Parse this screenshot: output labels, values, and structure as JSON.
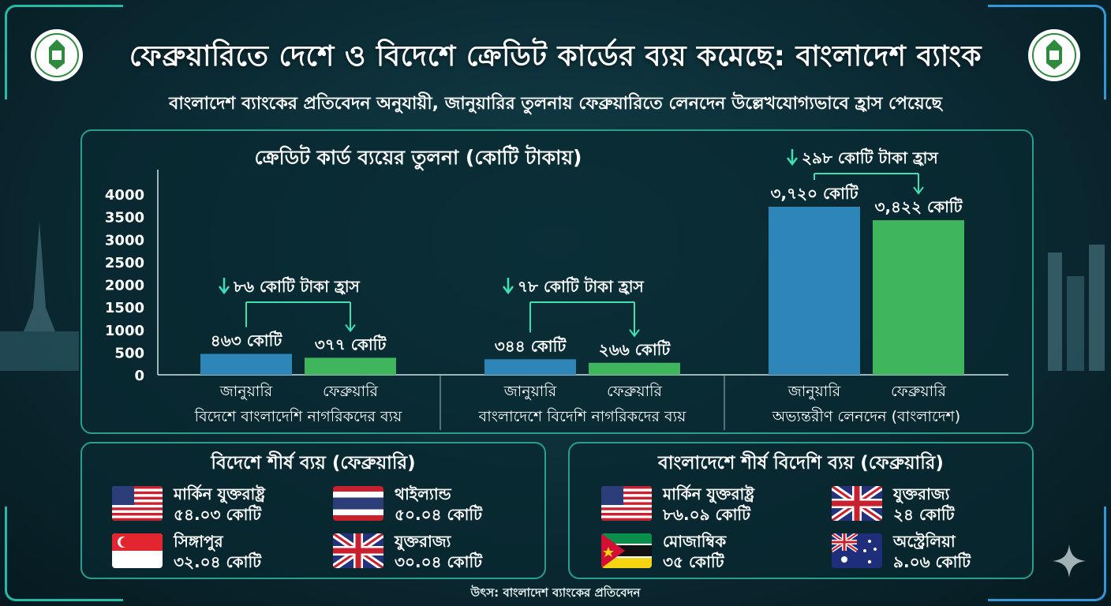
{
  "header": {
    "title": "ফেব্রুয়ারিতে দেশে ও বিদেশে ক্রেডিট কার্ডের ব্যয় কমেছে: বাংলাদেশ ব্যাংক",
    "subtitle": "বাংলাদেশ ব্যাংকের প্রতিবেদন অনুযায়ী, জানুয়ারির তুলনায় ফেব্রুয়ারিতে লেনদেন উল্লেখযোগ্যভাবে হ্রাস পেয়েছে"
  },
  "chart_data": {
    "type": "bar",
    "title": "ক্রেডিট কার্ড ব্যয়ের তুলনা (কোটি টাকায়)",
    "ylim": [
      0,
      4000
    ],
    "yticks": [
      0,
      500,
      1000,
      1500,
      2000,
      2500,
      3000,
      3500,
      4000
    ],
    "colors": {
      "january": "#2e86b8",
      "february": "#3fb55e"
    },
    "groups": [
      {
        "name": "বিদেশে বাংলাদেশি নাগরিকদের ব্যয়",
        "bars": [
          {
            "category": "জানুয়ারি",
            "value": 463,
            "label": "৪৬৩ কোটি"
          },
          {
            "category": "ফেব্রুয়ারি",
            "value": 377,
            "label": "৩৭৭ কোটি"
          }
        ],
        "change_label": "৮৬ কোটি টাকা হ্রাস"
      },
      {
        "name": "বাংলাদেশে বিদেশি নাগরিকদের ব্যয়",
        "bars": [
          {
            "category": "জানুয়ারি",
            "value": 344,
            "label": "৩৪৪ কোটি"
          },
          {
            "category": "ফেব্রুয়ারি",
            "value": 266,
            "label": "২৬৬ কোটি"
          }
        ],
        "change_label": "৭৮ কোটি টাকা হ্রাস"
      },
      {
        "name": "অভ্যন্তরীণ লেনদেন (বাংলাদেশ)",
        "bars": [
          {
            "category": "জানুয়ারি",
            "value": 3720,
            "label": "৩,৭২০ কোটি"
          },
          {
            "category": "ফেব্রুয়ারি",
            "value": 3422,
            "label": "৩,৪২২ কোটি"
          }
        ],
        "change_label": "২৯৮ কোটি টাকা হ্রাস"
      }
    ]
  },
  "abroad_top": {
    "title": "বিদেশে শীর্ষ ব্যয় (ফেব্রুয়ারি)",
    "items": [
      {
        "country": "মার্কিন যুক্তরাষ্ট্র",
        "value": "৫৪.০৩ কোটি",
        "flag": "us-flag-icon"
      },
      {
        "country": "থাইল্যান্ড",
        "value": "৫০.০৪ কোটি",
        "flag": "thailand-flag-icon"
      },
      {
        "country": "সিঙ্গাপুর",
        "value": "৩২.০৪ কোটি",
        "flag": "singapore-flag-icon"
      },
      {
        "country": "যুক্তরাজ্য",
        "value": "৩০.০৪ কোটি",
        "flag": "uk-flag-icon"
      }
    ]
  },
  "domestic_foreign_top": {
    "title": "বাংলাদেশে শীর্ষ বিদেশি ব্যয় (ফেব্রুয়ারি)",
    "items": [
      {
        "country": "মার্কিন যুক্তরাষ্ট্র",
        "value": "৮৬.০৯ কোটি",
        "flag": "us-flag-icon"
      },
      {
        "country": "যুক্তরাজ্য",
        "value": "২৪ কোটি",
        "flag": "uk-flag-icon"
      },
      {
        "country": "মোজাম্বিক",
        "value": "৩৫ কোটি",
        "flag": "mozambique-flag-icon"
      },
      {
        "country": "অস্ট্রেলিয়া",
        "value": "৯.০৬ কোটি",
        "flag": "australia-flag-icon"
      }
    ]
  },
  "footer": {
    "source": "উৎস: বাংলাদেশ ব্যাংকের প্রতিবেদন"
  }
}
